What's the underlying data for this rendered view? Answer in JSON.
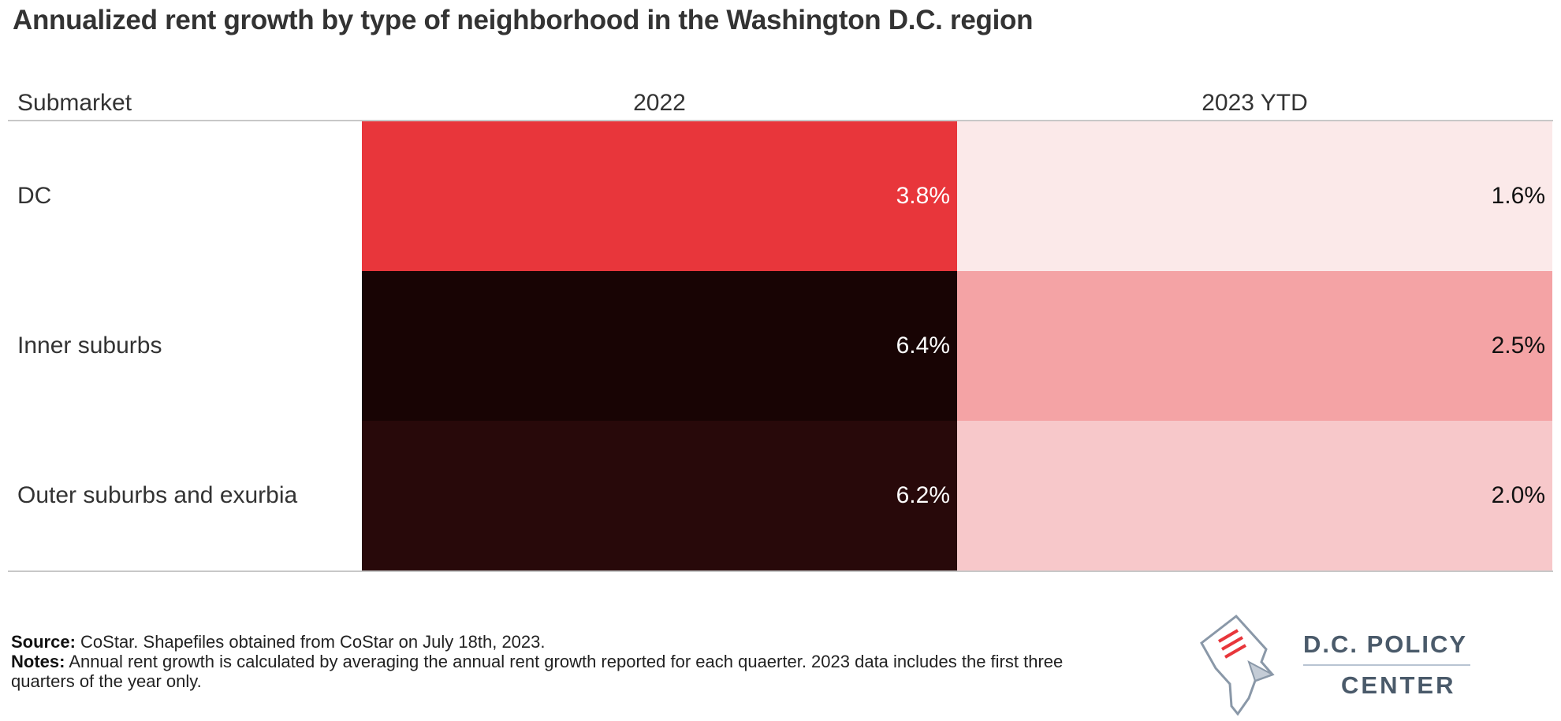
{
  "title": "Annualized rent growth by type of neighborhood in the Washington D.C. region",
  "columns": {
    "submarket": "Submarket",
    "c1": "2022",
    "c2": "2023 YTD"
  },
  "chart_data": {
    "type": "heatmap",
    "title": "Annualized rent growth by type of neighborhood in the Washington D.C. region",
    "row_header": "Submarket",
    "columns": [
      "2022",
      "2023 YTD"
    ],
    "rows": [
      {
        "label": "DC",
        "values": [
          3.8,
          1.6
        ],
        "display": [
          "3.8%",
          "1.6%"
        ],
        "colors": [
          "#e8363b",
          "#fbe9e9"
        ],
        "text_colors": [
          "#ffffff",
          "#111111"
        ]
      },
      {
        "label": "Inner suburbs",
        "values": [
          6.4,
          2.5
        ],
        "display": [
          "6.4%",
          "2.5%"
        ],
        "colors": [
          "#180404",
          "#f4a3a5"
        ],
        "text_colors": [
          "#ffffff",
          "#111111"
        ]
      },
      {
        "label": "Outer suburbs and exurbia",
        "values": [
          6.2,
          2.0
        ],
        "display": [
          "6.2%",
          "2.0%"
        ],
        "colors": [
          "#28090a",
          "#f7c8ca"
        ],
        "text_colors": [
          "#ffffff",
          "#111111"
        ]
      }
    ]
  },
  "footer": {
    "source_label": "Source:",
    "source_text": " CoStar. Shapefiles obtained from CoStar on July 18th, 2023.",
    "notes_label": "Notes:",
    "notes_text": " Annual rent growth is calculated by averaging the annual rent growth reported for each quaerter. 2023 data includes the first three quarters of the year only."
  },
  "logo": {
    "line1": "D.C. POLICY",
    "line2": "CENTER",
    "colors": {
      "text": "#4a5a6a",
      "accent": "#e8363b"
    }
  }
}
